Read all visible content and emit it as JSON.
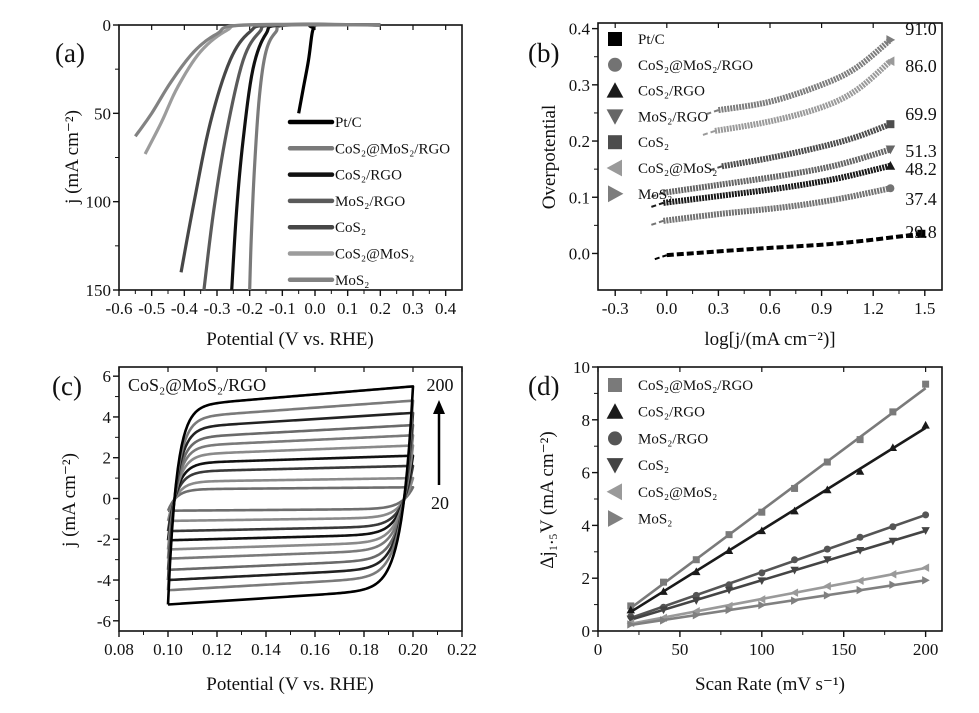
{
  "chart_data": [
    {
      "type": "line",
      "panel_label": "(a)",
      "xlabel": "Potential (V vs. RHE)",
      "ylabel": "j (mA cm⁻²)",
      "xlim": [
        -0.6,
        0.45
      ],
      "ylim": [
        0,
        150
      ],
      "y_inverted": true,
      "xticks": [
        -0.6,
        -0.5,
        -0.4,
        -0.3,
        -0.2,
        -0.1,
        0.0,
        0.1,
        0.2,
        0.3,
        0.4
      ],
      "xtick_labels": [
        "-0.6",
        "-0.5",
        "-0.4",
        "-0.3",
        "-0.2",
        "-0.1",
        "0.0",
        "0.1",
        "0.2",
        "0.3",
        "0.4"
      ],
      "yticks": [
        0,
        50,
        100,
        150
      ],
      "ytick_labels": [
        "0",
        "50",
        "100",
        "150"
      ],
      "legend_position": "right-middle",
      "series": [
        {
          "name": "Pt/C",
          "color": "#000000",
          "points": [
            [
              0.2,
              0
            ],
            [
              0.0,
              0
            ],
            [
              -0.005,
              2
            ],
            [
              -0.01,
              6
            ],
            [
              -0.02,
              20
            ],
            [
              -0.035,
              35
            ],
            [
              -0.05,
              50
            ]
          ]
        },
        {
          "name": "CoS₂@MoS₂/RGO",
          "color": "#7a7a7a",
          "points": [
            [
              0.2,
              0
            ],
            [
              -0.08,
              0
            ],
            [
              -0.12,
              4
            ],
            [
              -0.15,
              15
            ],
            [
              -0.17,
              40
            ],
            [
              -0.185,
              80
            ],
            [
              -0.195,
              120
            ],
            [
              -0.2,
              150
            ]
          ]
        },
        {
          "name": "CoS₂/RGO",
          "color": "#111111",
          "points": [
            [
              0.2,
              0
            ],
            [
              -0.1,
              0
            ],
            [
              -0.15,
              5
            ],
            [
              -0.19,
              25
            ],
            [
              -0.22,
              65
            ],
            [
              -0.24,
              105
            ],
            [
              -0.255,
              150
            ]
          ]
        },
        {
          "name": "MoS₂/RGO",
          "color": "#5a5a5a",
          "points": [
            [
              0.2,
              0
            ],
            [
              -0.12,
              0
            ],
            [
              -0.17,
              4
            ],
            [
              -0.22,
              20
            ],
            [
              -0.27,
              60
            ],
            [
              -0.31,
              105
            ],
            [
              -0.34,
              150
            ]
          ]
        },
        {
          "name": "CoS₂",
          "color": "#474747",
          "points": [
            [
              0.2,
              0
            ],
            [
              -0.13,
              0
            ],
            [
              -0.2,
              4
            ],
            [
              -0.26,
              20
            ],
            [
              -0.32,
              55
            ],
            [
              -0.37,
              100
            ],
            [
              -0.41,
              140
            ]
          ]
        },
        {
          "name": "CoS₂@MoS₂",
          "color": "#9c9c9c",
          "points": [
            [
              0.2,
              0
            ],
            [
              -0.2,
              0
            ],
            [
              -0.27,
              3
            ],
            [
              -0.35,
              15
            ],
            [
              -0.42,
              35
            ],
            [
              -0.47,
              55
            ],
            [
              -0.52,
              73
            ]
          ]
        },
        {
          "name": "MoS₂",
          "color": "#828282",
          "points": [
            [
              0.2,
              0
            ],
            [
              -0.22,
              0
            ],
            [
              -0.3,
              5
            ],
            [
              -0.37,
              15
            ],
            [
              -0.44,
              32
            ],
            [
              -0.5,
              50
            ],
            [
              -0.55,
              63
            ]
          ]
        }
      ]
    },
    {
      "type": "scatter",
      "panel_label": "(b)",
      "xlabel": "log[j/(mA cm⁻²)]",
      "ylabel": "Overpotential",
      "xlim": [
        -0.4,
        1.6
      ],
      "ylim": [
        -0.065,
        0.41
      ],
      "xticks": [
        -0.3,
        0.0,
        0.3,
        0.6,
        0.9,
        1.2,
        1.5
      ],
      "xtick_labels": [
        "-0.3",
        "0.0",
        "0.3",
        "0.6",
        "0.9",
        "1.2",
        "1.5"
      ],
      "yticks": [
        0.0,
        0.1,
        0.2,
        0.3,
        0.4
      ],
      "ytick_labels": [
        "0.0",
        "0.1",
        "0.2",
        "0.3",
        "0.4"
      ],
      "legend_position": "top-left",
      "series": [
        {
          "name": "Pt/C",
          "marker": "square",
          "color": "#000000",
          "tafel_slope": "29.8",
          "points": [
            [
              0.0,
              -0.003
            ],
            [
              0.5,
              0.008
            ],
            [
              1.0,
              0.018
            ],
            [
              1.48,
              0.035
            ]
          ]
        },
        {
          "name": "CoS₂@MoS₂/RGO",
          "marker": "circle",
          "color": "#737373",
          "tafel_slope": "37.4",
          "points": [
            [
              -0.02,
              0.058
            ],
            [
              0.3,
              0.07
            ],
            [
              0.7,
              0.083
            ],
            [
              1.0,
              0.097
            ],
            [
              1.3,
              0.116
            ]
          ]
        },
        {
          "name": "CoS₂/RGO",
          "marker": "triangle-up",
          "color": "#1a1a1a",
          "tafel_slope": "48.2",
          "points": [
            [
              -0.02,
              0.09
            ],
            [
              0.3,
              0.102
            ],
            [
              0.7,
              0.118
            ],
            [
              1.0,
              0.134
            ],
            [
              1.3,
              0.156
            ]
          ]
        },
        {
          "name": "MoS₂/RGO",
          "marker": "triangle-down",
          "color": "#666666",
          "tafel_slope": "51.3",
          "points": [
            [
              -0.02,
              0.108
            ],
            [
              0.3,
              0.122
            ],
            [
              0.7,
              0.14
            ],
            [
              1.0,
              0.158
            ],
            [
              1.3,
              0.185
            ]
          ]
        },
        {
          "name": "CoS₂",
          "marker": "square",
          "color": "#4d4d4d",
          "tafel_slope": "69.9",
          "points": [
            [
              0.32,
              0.155
            ],
            [
              0.6,
              0.17
            ],
            [
              0.9,
              0.19
            ],
            [
              1.1,
              0.207
            ],
            [
              1.3,
              0.23
            ]
          ]
        },
        {
          "name": "CoS₂@MoS₂",
          "marker": "triangle-left",
          "color": "#9a9a9a",
          "tafel_slope": "86.0",
          "points": [
            [
              0.28,
              0.218
            ],
            [
              0.6,
              0.235
            ],
            [
              0.9,
              0.26
            ],
            [
              1.1,
              0.29
            ],
            [
              1.3,
              0.342
            ]
          ]
        },
        {
          "name": "MoS₂",
          "marker": "triangle-right",
          "color": "#7d7d7d",
          "tafel_slope": "91.0",
          "points": [
            [
              0.3,
              0.255
            ],
            [
              0.6,
              0.27
            ],
            [
              0.9,
              0.3
            ],
            [
              1.1,
              0.33
            ],
            [
              1.3,
              0.38
            ]
          ]
        }
      ]
    },
    {
      "type": "line",
      "panel_label": "(c)",
      "title": "CoS₂@MoS₂/RGO",
      "xlabel": "Potential (V vs. RHE)",
      "ylabel": "j (mA cm⁻²)",
      "xlim": [
        0.08,
        0.22
      ],
      "ylim": [
        -6.5,
        6.45
      ],
      "xticks": [
        0.08,
        0.1,
        0.12,
        0.14,
        0.16,
        0.18,
        0.2,
        0.22
      ],
      "xtick_labels": [
        "0.08",
        "0.10",
        "0.12",
        "0.14",
        "0.16",
        "0.18",
        "0.20",
        "0.22"
      ],
      "yticks": [
        -6,
        -4,
        -2,
        0,
        2,
        4,
        6
      ],
      "ytick_labels": [
        "-6",
        "-4",
        "-2",
        "0",
        "2",
        "4",
        "6"
      ],
      "arrow_top_label": "200",
      "arrow_bottom_label": "20",
      "potential_window": [
        0.1,
        0.2
      ],
      "series": [
        {
          "scan_rate": 20,
          "top": 0.55,
          "bottom": -0.6,
          "color": "#6e6e6e"
        },
        {
          "scan_rate": 40,
          "top": 1.0,
          "bottom": -1.1,
          "color": "#8a8a8a"
        },
        {
          "scan_rate": 60,
          "top": 1.6,
          "bottom": -1.6,
          "color": "#3a3a3a"
        },
        {
          "scan_rate": 80,
          "top": 2.1,
          "bottom": -2.05,
          "color": "#111111"
        },
        {
          "scan_rate": 100,
          "top": 2.6,
          "bottom": -2.5,
          "color": "#8a8a8a"
        },
        {
          "scan_rate": 120,
          "top": 3.1,
          "bottom": -2.95,
          "color": "#7a7a7a"
        },
        {
          "scan_rate": 140,
          "top": 3.6,
          "bottom": -3.5,
          "color": "#6a6a6a"
        },
        {
          "scan_rate": 160,
          "top": 4.2,
          "bottom": -4.0,
          "color": "#222222"
        },
        {
          "scan_rate": 180,
          "top": 4.8,
          "bottom": -4.5,
          "color": "#7a7a7a"
        },
        {
          "scan_rate": 200,
          "top": 5.5,
          "bottom": -5.2,
          "color": "#000000"
        }
      ]
    },
    {
      "type": "scatter",
      "panel_label": "(d)",
      "xlabel": "Scan Rate (mV s⁻¹)",
      "ylabel": "Δj₁.₅V (mA cm⁻²)",
      "xlim": [
        0,
        210
      ],
      "ylim": [
        0,
        10
      ],
      "xticks": [
        0,
        50,
        100,
        150,
        200
      ],
      "xtick_labels": [
        "0",
        "50",
        "100",
        "150",
        "200"
      ],
      "yticks": [
        0,
        2,
        4,
        6,
        8,
        10
      ],
      "ytick_labels": [
        "0",
        "2",
        "4",
        "6",
        "8",
        "10"
      ],
      "legend_position": "top-left",
      "x": [
        20,
        40,
        60,
        80,
        100,
        120,
        140,
        160,
        180,
        200
      ],
      "series": [
        {
          "name": "CoS₂@MoS₂/RGO",
          "marker": "square",
          "color": "#7a7a7a",
          "values": [
            0.95,
            1.85,
            2.7,
            3.65,
            4.5,
            5.4,
            6.4,
            7.25,
            8.3,
            9.35
          ]
        },
        {
          "name": "CoS₂/RGO",
          "marker": "triangle-up",
          "color": "#1a1a1a",
          "values": [
            0.8,
            1.5,
            2.25,
            3.05,
            3.8,
            4.55,
            5.35,
            6.05,
            6.95,
            7.8
          ]
        },
        {
          "name": "MoS₂/RGO",
          "marker": "circle",
          "color": "#555555",
          "values": [
            0.55,
            0.9,
            1.35,
            1.75,
            2.2,
            2.7,
            3.1,
            3.55,
            3.95,
            4.4
          ]
        },
        {
          "name": "CoS₂",
          "marker": "triangle-down",
          "color": "#444444",
          "values": [
            0.45,
            0.8,
            1.15,
            1.55,
            1.9,
            2.3,
            2.7,
            3.05,
            3.4,
            3.8
          ]
        },
        {
          "name": "CoS₂@MoS₂",
          "marker": "triangle-left",
          "color": "#9a9a9a",
          "values": [
            0.3,
            0.5,
            0.75,
            0.95,
            1.2,
            1.45,
            1.7,
            1.9,
            2.15,
            2.4
          ]
        },
        {
          "name": "MoS₂",
          "marker": "triangle-right",
          "color": "#808080",
          "values": [
            0.25,
            0.4,
            0.6,
            0.8,
            0.98,
            1.15,
            1.35,
            1.55,
            1.75,
            1.92
          ]
        }
      ]
    }
  ]
}
